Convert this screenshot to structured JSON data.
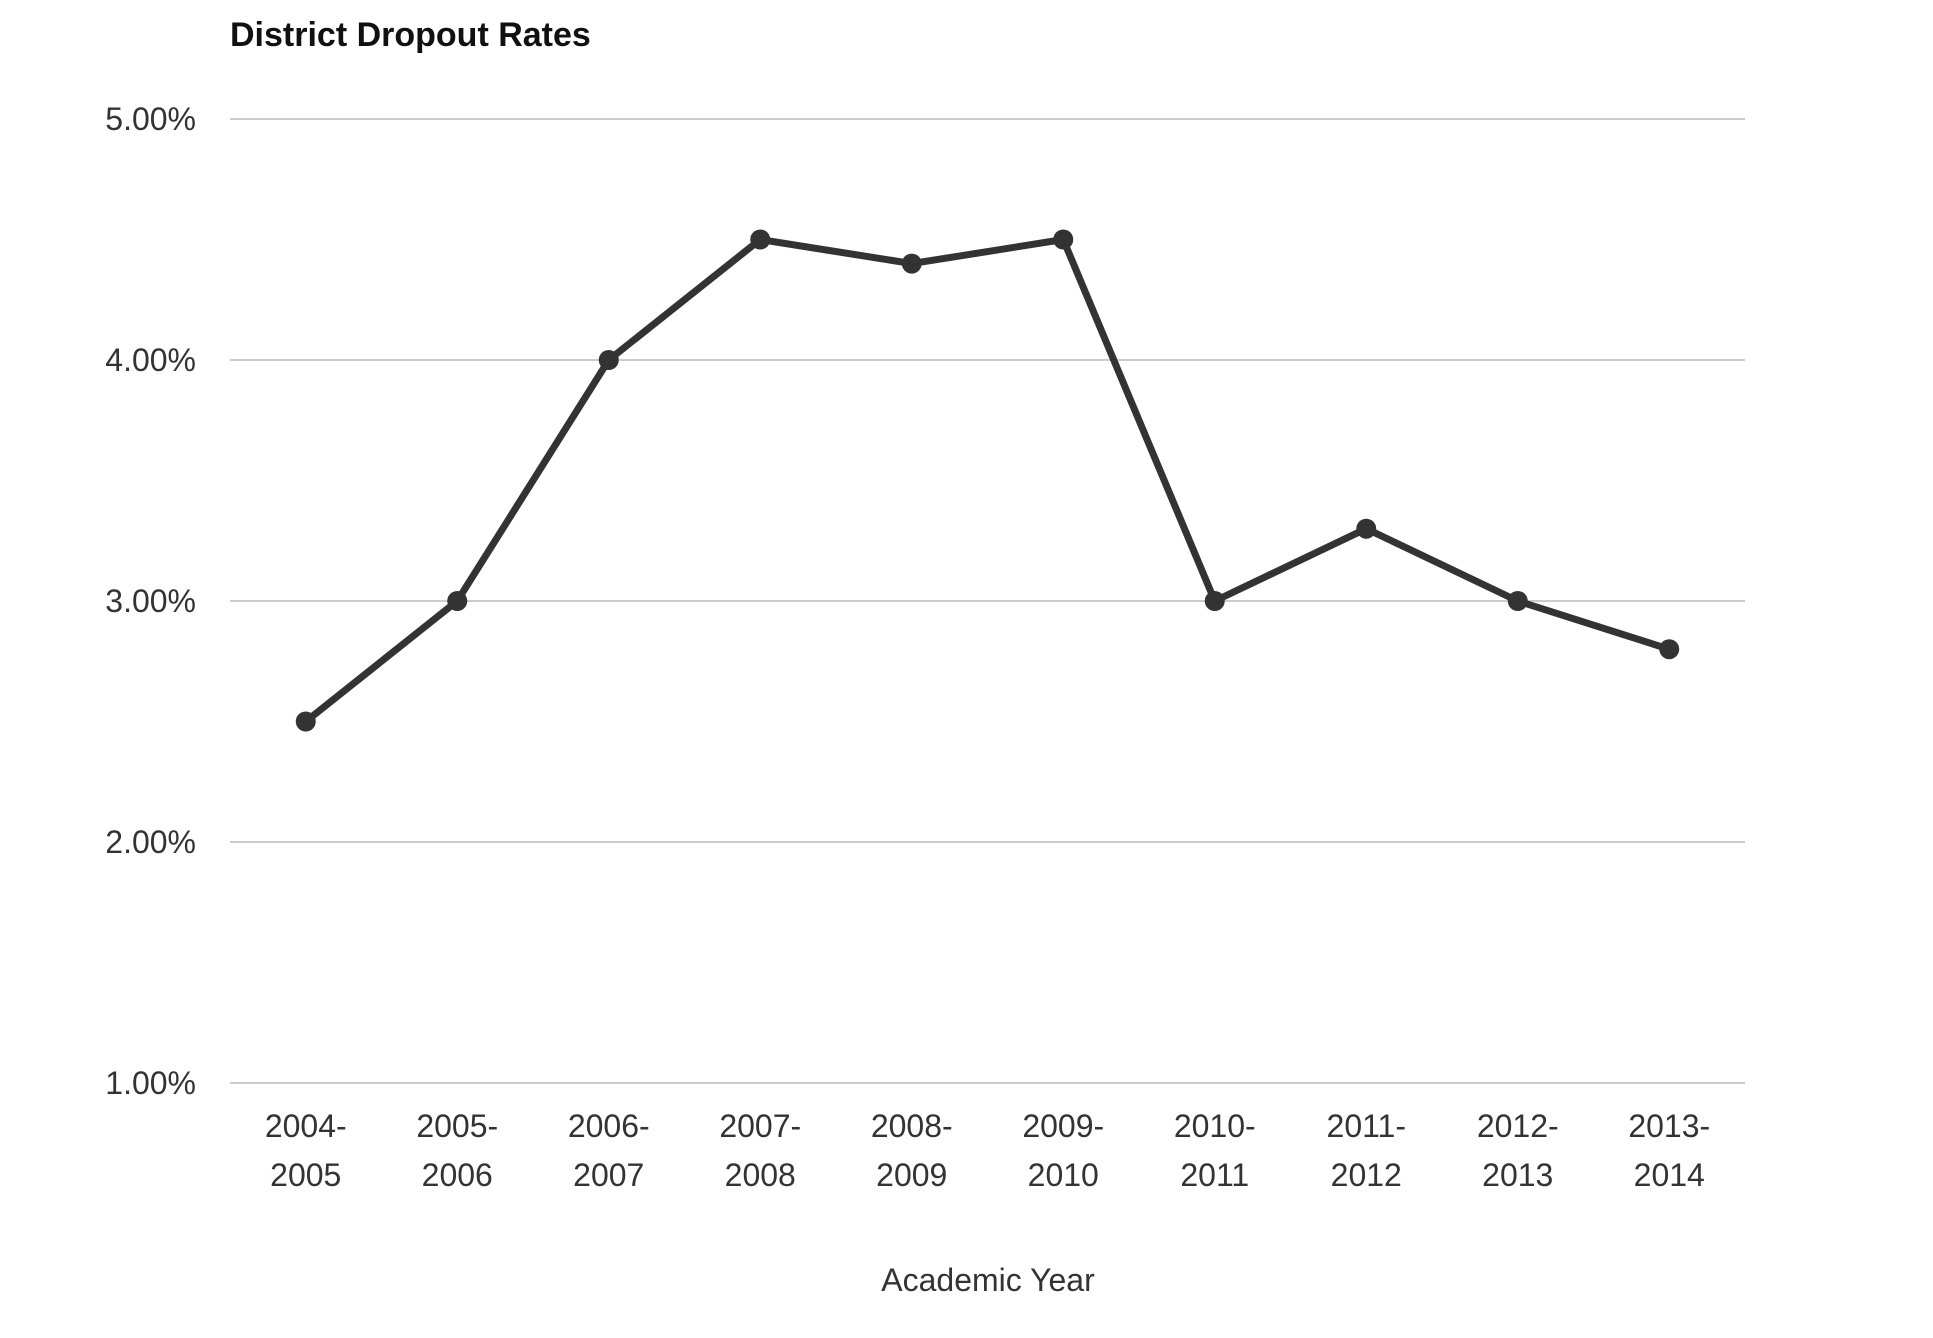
{
  "chart_data": {
    "type": "line",
    "title": "District Dropout Rates",
    "xlabel": "Academic Year",
    "ylabel": "",
    "categories": [
      "2004-2005",
      "2005-2006",
      "2006-2007",
      "2007-2008",
      "2008-2009",
      "2009-2010",
      "2010-2011",
      "2011-2012",
      "2012-2013",
      "2013-2014"
    ],
    "tick_lines": [
      [
        "2004-",
        "2005"
      ],
      [
        "2005-",
        "2006"
      ],
      [
        "2006-",
        "2007"
      ],
      [
        "2007-",
        "2008"
      ],
      [
        "2008-",
        "2009"
      ],
      [
        "2009-",
        "2010"
      ],
      [
        "2010-",
        "2011"
      ],
      [
        "2011-",
        "2012"
      ],
      [
        "2012-",
        "2013"
      ],
      [
        "2013-",
        "2014"
      ]
    ],
    "series": [
      {
        "name": "District Dropout Rate",
        "values": [
          2.5,
          3.0,
          4.0,
          4.5,
          4.4,
          4.5,
          3.0,
          3.3,
          3.0,
          2.8
        ]
      }
    ],
    "unit": "%",
    "ylim": [
      1,
      5
    ],
    "yticks": [
      "5.00%",
      "4.00%",
      "3.00%",
      "2.00%",
      "1.00%"
    ],
    "ytick_values": [
      5,
      4,
      3,
      2,
      1
    ],
    "grid": true,
    "legend_position": "none",
    "colors": {
      "line": "#333333",
      "marker": "#333333",
      "gridline": "#cccccc",
      "title": "#111111",
      "tick_label": "#333333",
      "axis_label": "#333333",
      "background": "#ffffff"
    }
  }
}
